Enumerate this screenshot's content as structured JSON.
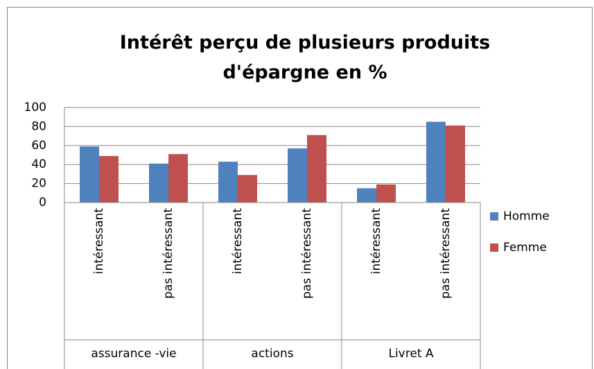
{
  "chart_data": {
    "type": "bar",
    "title": "Intérêt perçu de plusieurs produits d'épargne en %",
    "groups": [
      {
        "name": "assurance -vie",
        "categories": [
          "intéressant",
          "pas intéressant"
        ]
      },
      {
        "name": "actions",
        "categories": [
          "intéressant",
          "pas intéressant"
        ]
      },
      {
        "name": "Livret A",
        "categories": [
          "intéressant",
          "pas intéressant"
        ]
      }
    ],
    "series": [
      {
        "name": "Homme",
        "color": "#4f81bd",
        "values": [
          59,
          41,
          43,
          57,
          15,
          85
        ]
      },
      {
        "name": "Femme",
        "color": "#c0504d",
        "values": [
          49,
          51,
          29,
          71,
          19,
          81
        ]
      }
    ],
    "ylim": [
      0,
      100
    ],
    "yticks": [
      0,
      20,
      40,
      60,
      80,
      100
    ],
    "grid": true,
    "legend": "right"
  }
}
